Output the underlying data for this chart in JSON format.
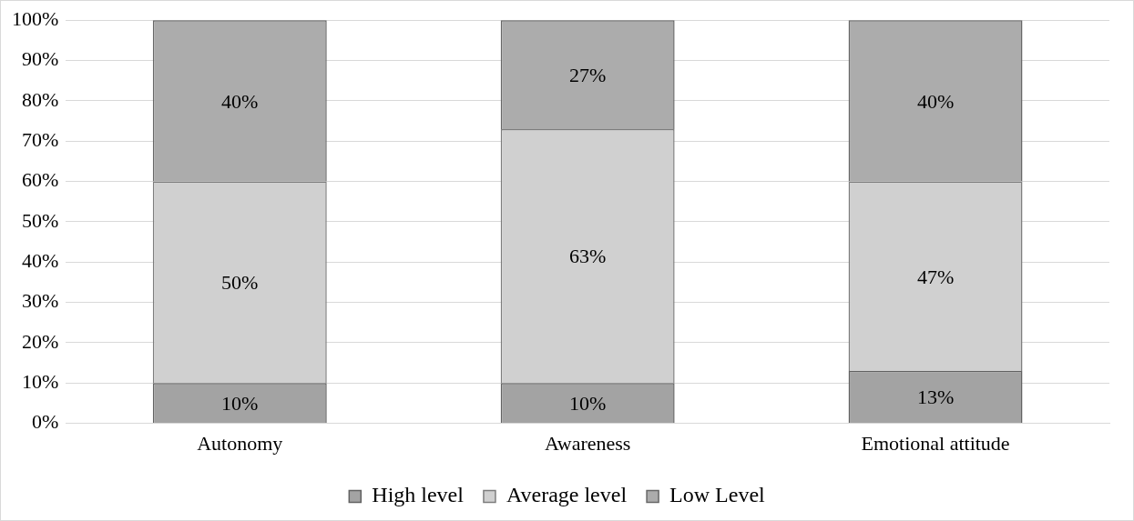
{
  "chart_data": {
    "type": "bar",
    "stacked": true,
    "categories": [
      "Autonomy",
      "Awareness",
      "Emotional attitude"
    ],
    "series": [
      {
        "name": "High level",
        "color": "#a3a3a3",
        "values": [
          10,
          10,
          13
        ],
        "value_labels": [
          "10%",
          "10%",
          "13%"
        ]
      },
      {
        "name": "Average level",
        "color": "#d0d0d0",
        "values": [
          50,
          63,
          47
        ],
        "value_labels": [
          "50%",
          "63%",
          "47%"
        ]
      },
      {
        "name": "Low Level",
        "color": "#acacac",
        "values": [
          40,
          27,
          40
        ],
        "value_labels": [
          "40%",
          "27%",
          "40%"
        ]
      }
    ],
    "ylim": [
      0,
      100
    ],
    "yticks": [
      {
        "value": 0,
        "label": "0%"
      },
      {
        "value": 10,
        "label": "10%"
      },
      {
        "value": 20,
        "label": "20%"
      },
      {
        "value": 30,
        "label": "30%"
      },
      {
        "value": 40,
        "label": "40%"
      },
      {
        "value": 50,
        "label": "50%"
      },
      {
        "value": 60,
        "label": "60%"
      },
      {
        "value": 70,
        "label": "70%"
      },
      {
        "value": 80,
        "label": "80%"
      },
      {
        "value": 90,
        "label": "90%"
      },
      {
        "value": 100,
        "label": "100%"
      }
    ],
    "grid": "y",
    "legend": "bottom"
  }
}
